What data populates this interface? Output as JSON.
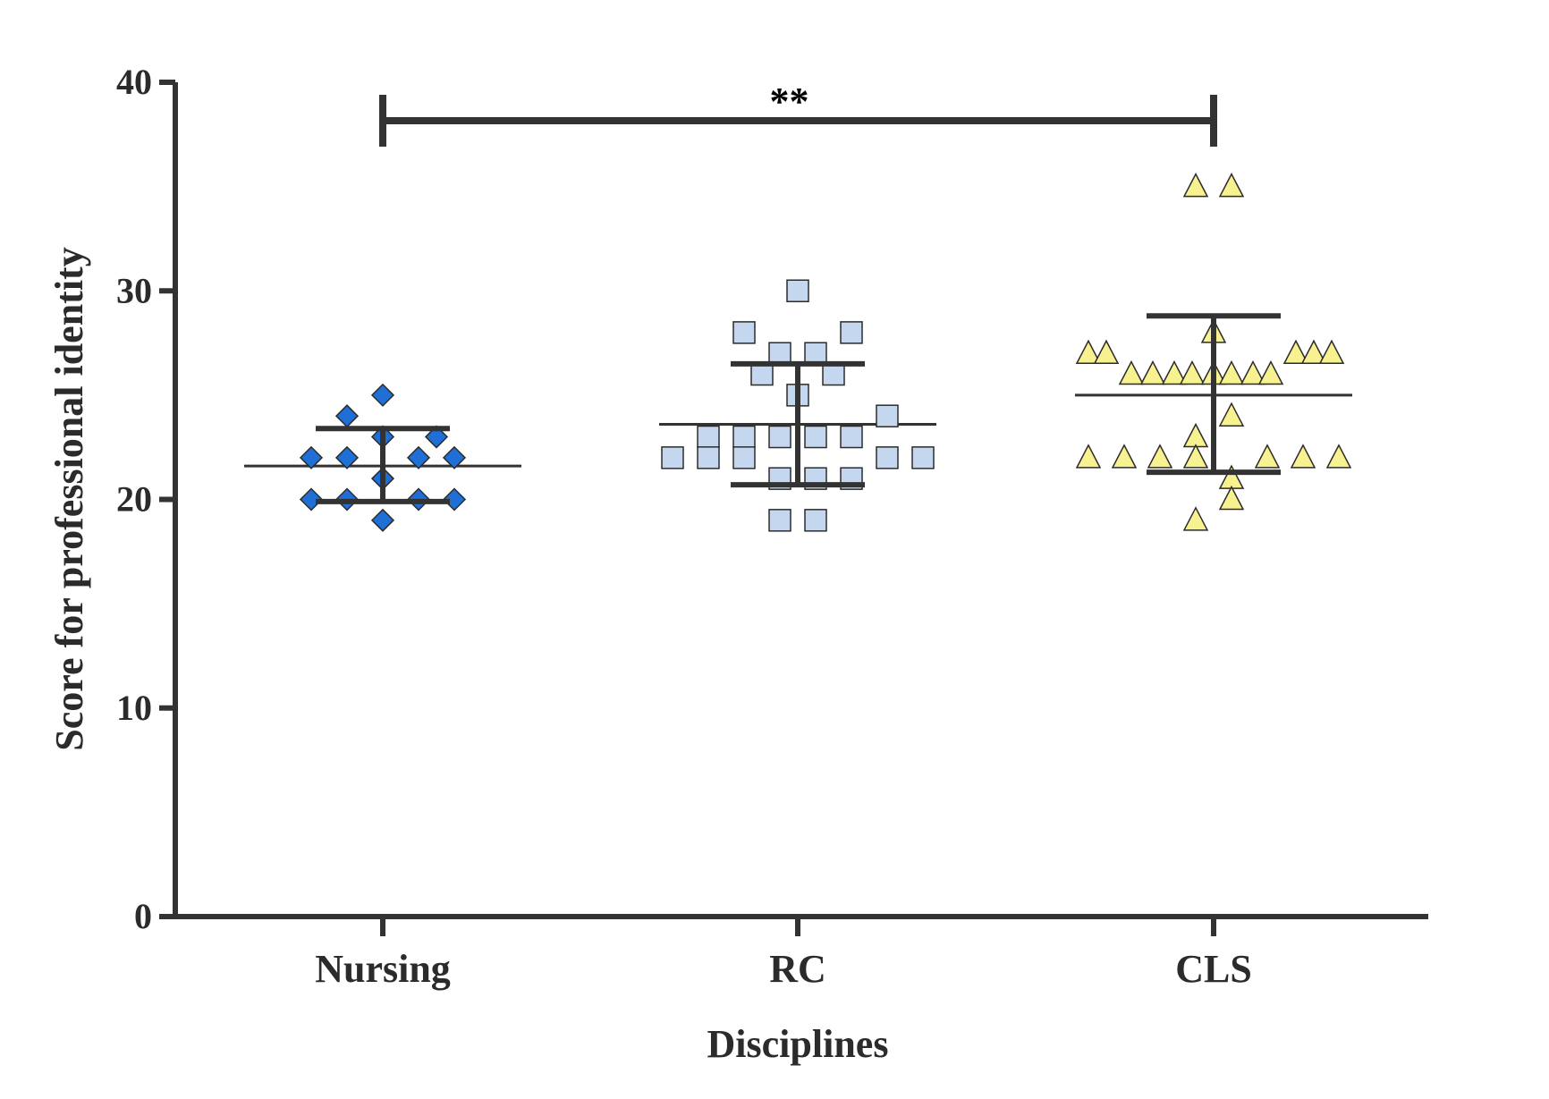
{
  "chart_data": {
    "type": "scatter",
    "xlabel": "Disciplines",
    "ylabel": "Score for professional identity",
    "ylim": [
      0,
      40
    ],
    "yticks": [
      "0",
      "10",
      "20",
      "30",
      "40"
    ],
    "categories": [
      "Nursing",
      "RC",
      "CLS"
    ],
    "significance": {
      "between": [
        "Nursing",
        "CLS"
      ],
      "label": "**"
    },
    "series": [
      {
        "category": "Nursing",
        "marker": "diamond",
        "color": "#1f6fd6",
        "mean": 21.6,
        "sd_low": 19.9,
        "sd_high": 23.4,
        "points": [
          {
            "offset": 0,
            "y": 25
          },
          {
            "offset": -1,
            "y": 24
          },
          {
            "offset": 0,
            "y": 23
          },
          {
            "offset": 1.5,
            "y": 23
          },
          {
            "offset": -2,
            "y": 22
          },
          {
            "offset": -1,
            "y": 22
          },
          {
            "offset": 1,
            "y": 22
          },
          {
            "offset": 2,
            "y": 22
          },
          {
            "offset": 0,
            "y": 21
          },
          {
            "offset": -2,
            "y": 20
          },
          {
            "offset": -1,
            "y": 20
          },
          {
            "offset": 1,
            "y": 20
          },
          {
            "offset": 2,
            "y": 20
          },
          {
            "offset": 0,
            "y": 19
          }
        ]
      },
      {
        "category": "RC",
        "marker": "square",
        "color": "#c5d7ee",
        "mean": 23.6,
        "sd_low": 20.7,
        "sd_high": 26.5,
        "points": [
          {
            "offset": 0,
            "y": 30
          },
          {
            "offset": -1.5,
            "y": 28
          },
          {
            "offset": 1.5,
            "y": 28
          },
          {
            "offset": -0.5,
            "y": 27
          },
          {
            "offset": 0.5,
            "y": 27
          },
          {
            "offset": -1,
            "y": 26
          },
          {
            "offset": 1,
            "y": 26
          },
          {
            "offset": 0,
            "y": 25
          },
          {
            "offset": 2.5,
            "y": 24
          },
          {
            "offset": -2.5,
            "y": 23
          },
          {
            "offset": -1.5,
            "y": 23
          },
          {
            "offset": -0.5,
            "y": 23
          },
          {
            "offset": 0.5,
            "y": 23
          },
          {
            "offset": 1.5,
            "y": 23
          },
          {
            "offset": -3.5,
            "y": 22
          },
          {
            "offset": -2.5,
            "y": 22
          },
          {
            "offset": -1.5,
            "y": 22
          },
          {
            "offset": 2.5,
            "y": 22
          },
          {
            "offset": 3.5,
            "y": 22
          },
          {
            "offset": -0.5,
            "y": 21
          },
          {
            "offset": 0.5,
            "y": 21
          },
          {
            "offset": 1.5,
            "y": 21
          },
          {
            "offset": -0.5,
            "y": 19
          },
          {
            "offset": 0.5,
            "y": 19
          }
        ]
      },
      {
        "category": "CLS",
        "marker": "triangle",
        "color": "#f7f18f",
        "mean": 25.0,
        "sd_low": 21.3,
        "sd_high": 28.8,
        "points": [
          {
            "offset": -0.5,
            "y": 35
          },
          {
            "offset": 0.5,
            "y": 35
          },
          {
            "offset": 0,
            "y": 28
          },
          {
            "offset": -3.5,
            "y": 27
          },
          {
            "offset": -3,
            "y": 27
          },
          {
            "offset": 2.3,
            "y": 27
          },
          {
            "offset": 2.8,
            "y": 27
          },
          {
            "offset": 3.3,
            "y": 27
          },
          {
            "offset": -2.3,
            "y": 26
          },
          {
            "offset": -1.7,
            "y": 26
          },
          {
            "offset": -1.1,
            "y": 26
          },
          {
            "offset": -0.6,
            "y": 26
          },
          {
            "offset": 0,
            "y": 26
          },
          {
            "offset": 0.5,
            "y": 26
          },
          {
            "offset": 1.1,
            "y": 26
          },
          {
            "offset": 1.6,
            "y": 26
          },
          {
            "offset": 0.5,
            "y": 24
          },
          {
            "offset": -0.5,
            "y": 23
          },
          {
            "offset": -3.5,
            "y": 22
          },
          {
            "offset": -2.5,
            "y": 22
          },
          {
            "offset": -1.5,
            "y": 22
          },
          {
            "offset": -0.5,
            "y": 22
          },
          {
            "offset": 1.5,
            "y": 22
          },
          {
            "offset": 2.5,
            "y": 22
          },
          {
            "offset": 3.5,
            "y": 22
          },
          {
            "offset": 0.5,
            "y": 21
          },
          {
            "offset": 0.5,
            "y": 20
          },
          {
            "offset": -0.5,
            "y": 19
          }
        ]
      }
    ]
  }
}
